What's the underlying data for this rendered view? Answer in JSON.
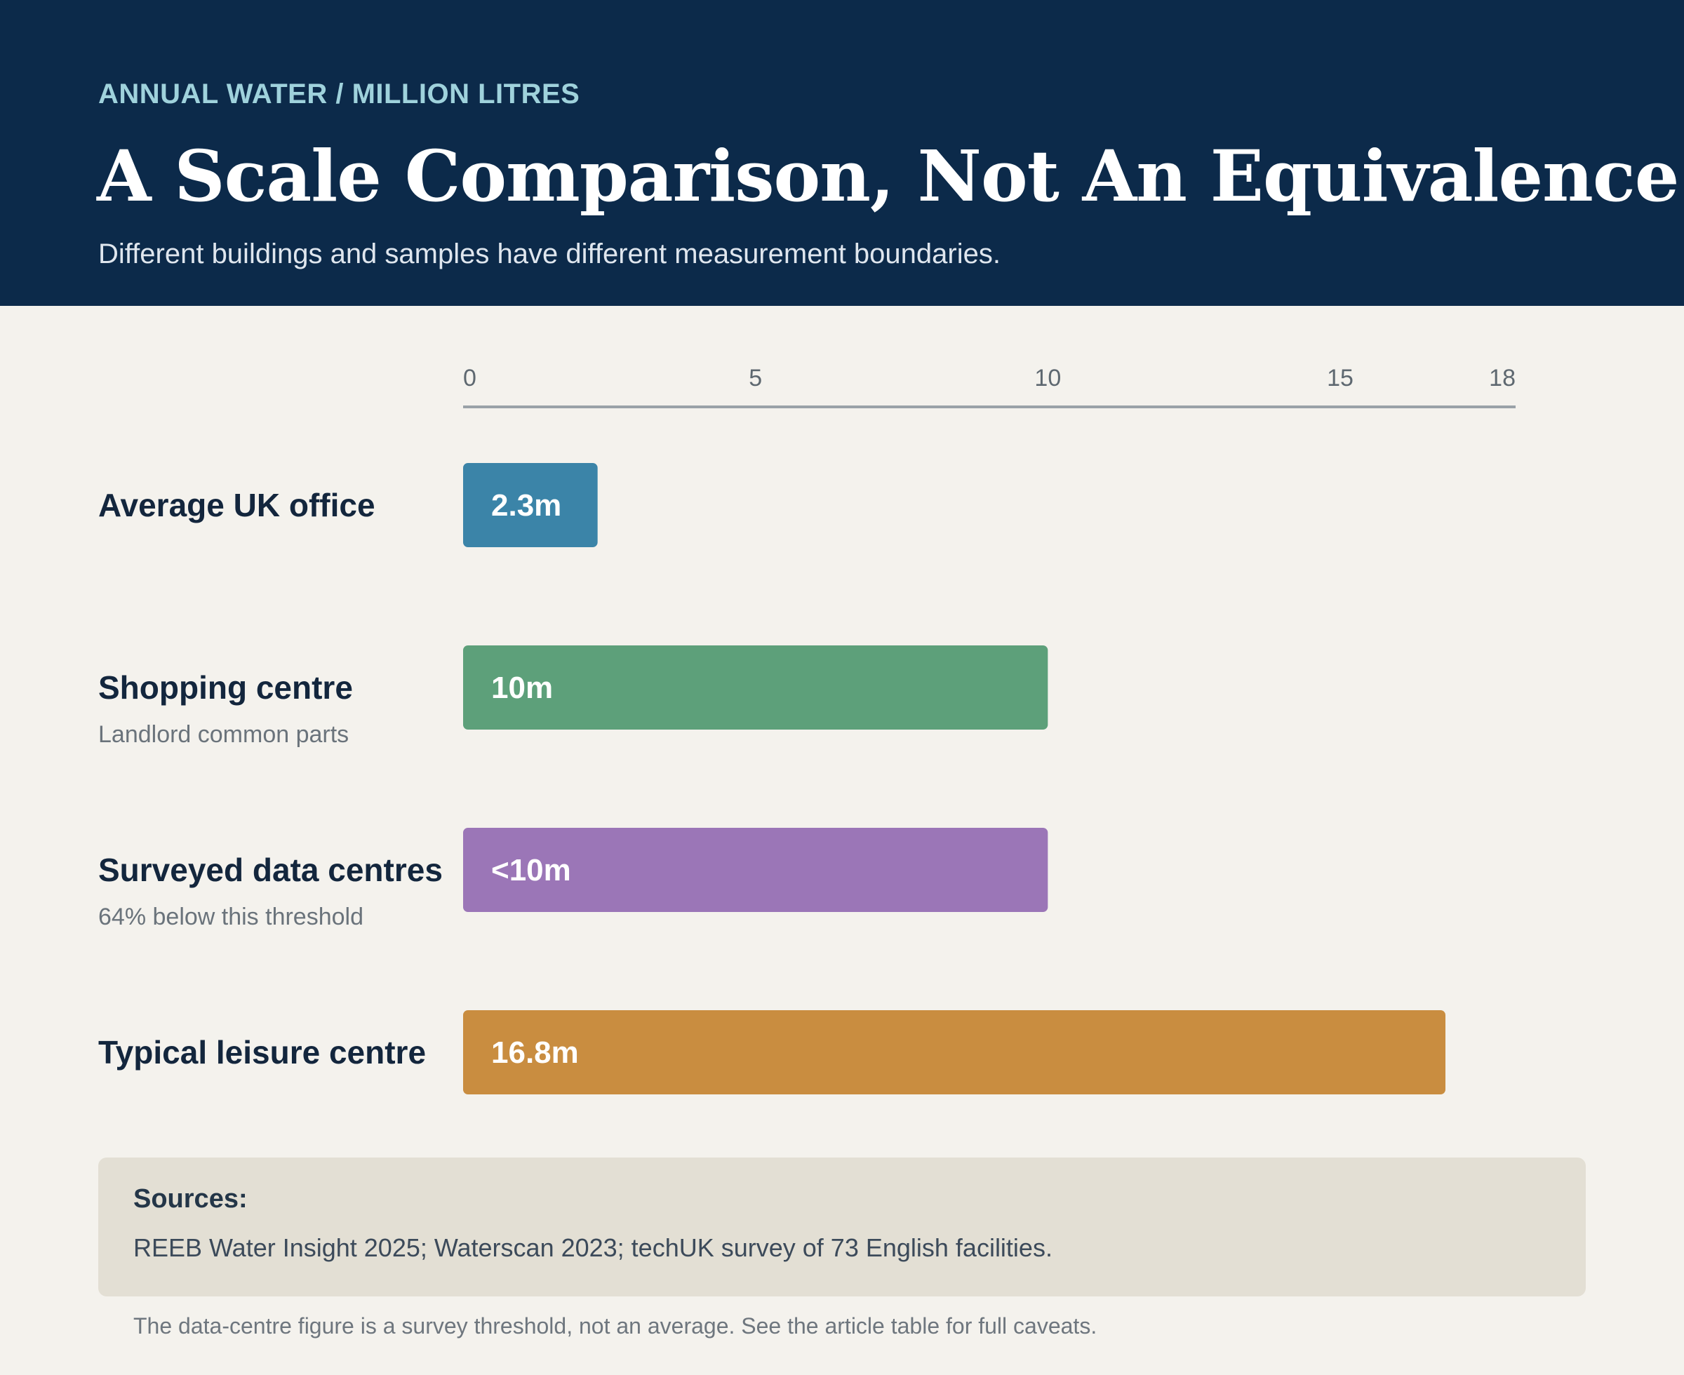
{
  "header": {
    "eyebrow": "ANNUAL WATER / MILLION LITRES",
    "title": "A Scale Comparison, Not An Equivalence",
    "subtitle": "Different buildings and samples have different measurement boundaries."
  },
  "chart_data": {
    "type": "bar",
    "orientation": "horizontal",
    "xlim": [
      0,
      18
    ],
    "ticks": [
      0,
      5,
      10,
      15,
      18
    ],
    "grid": false,
    "categories": [
      "Average UK office",
      "Shopping centre",
      "Surveyed data centres",
      "Typical leisure centre"
    ],
    "sublabels": [
      "",
      "Landlord common parts",
      "64% below this threshold",
      ""
    ],
    "values": [
      2.3,
      10,
      10,
      16.8
    ],
    "value_labels": [
      "2.3m",
      "10m",
      "<10m",
      "16.8m"
    ],
    "colors": [
      "#3b84a8",
      "#5da07a",
      "#9b76b7",
      "#c98d40"
    ]
  },
  "sources": {
    "title": "Sources:",
    "text": "REEB Water Insight 2025; Waterscan 2023; techUK survey of 73 English facilities."
  },
  "footnote": "The data-centre figure is a survey threshold, not an average. See the article table for full caveats."
}
